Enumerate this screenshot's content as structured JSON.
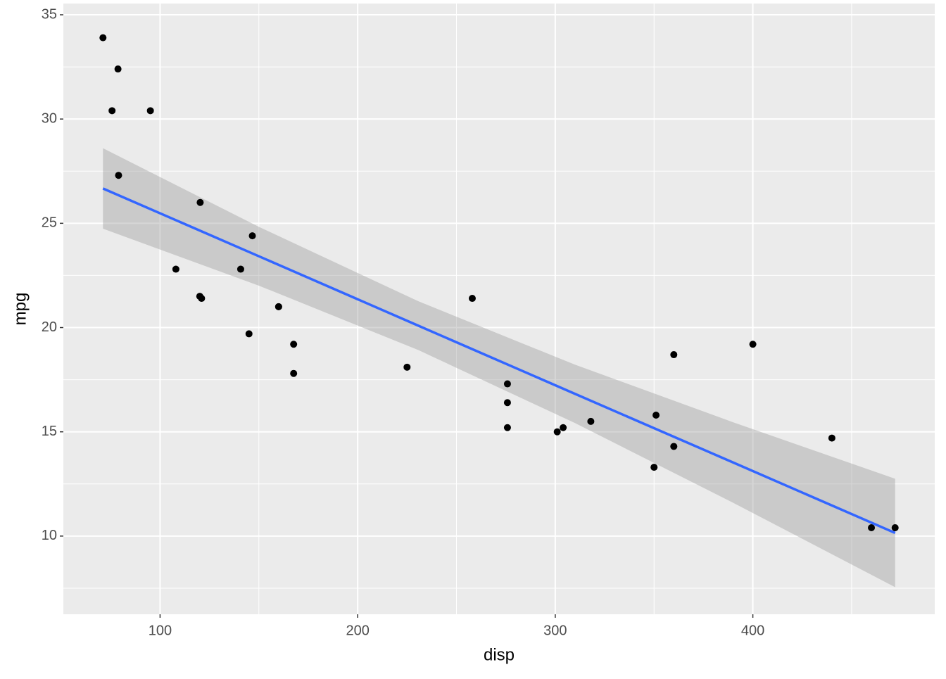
{
  "chart_data": {
    "type": "scatter",
    "x_label": "disp",
    "y_label": "mpg",
    "x": [
      160,
      160,
      108,
      258,
      360,
      225,
      360,
      146.7,
      140.8,
      167.6,
      167.6,
      275.8,
      275.8,
      275.8,
      472,
      460,
      440,
      78.7,
      75.7,
      71.1,
      120.1,
      318,
      304,
      350,
      400,
      79,
      120.3,
      95.1,
      351,
      145,
      301,
      121
    ],
    "y": [
      21,
      21,
      22.8,
      21.4,
      18.7,
      18.1,
      14.3,
      24.4,
      22.8,
      19.2,
      17.8,
      16.4,
      17.3,
      15.2,
      10.4,
      10.4,
      14.7,
      32.4,
      30.4,
      33.9,
      21.5,
      15.5,
      15.2,
      13.3,
      19.2,
      27.3,
      26,
      30.4,
      15.8,
      19.7,
      15,
      21.4
    ],
    "color": "#000000",
    "smooth": {
      "color": "#3366FF",
      "band_color": "#999999",
      "x": [
        71.1,
        150,
        230.72,
        310,
        390,
        472
      ],
      "fit": [
        26.67,
        23.42,
        20.09,
        16.82,
        13.53,
        10.15
      ],
      "lower": [
        24.74,
        22.01,
        18.92,
        15.42,
        11.6,
        7.55
      ],
      "upper": [
        28.6,
        24.83,
        21.26,
        18.22,
        15.46,
        12.75
      ]
    },
    "xlim": [
      51.05,
      492.05
    ],
    "ylim": [
      6.25,
      35.54
    ],
    "xticks": [
      100,
      200,
      300,
      400
    ],
    "yticks": [
      10,
      15,
      20,
      25,
      30,
      35
    ],
    "grid": true
  }
}
